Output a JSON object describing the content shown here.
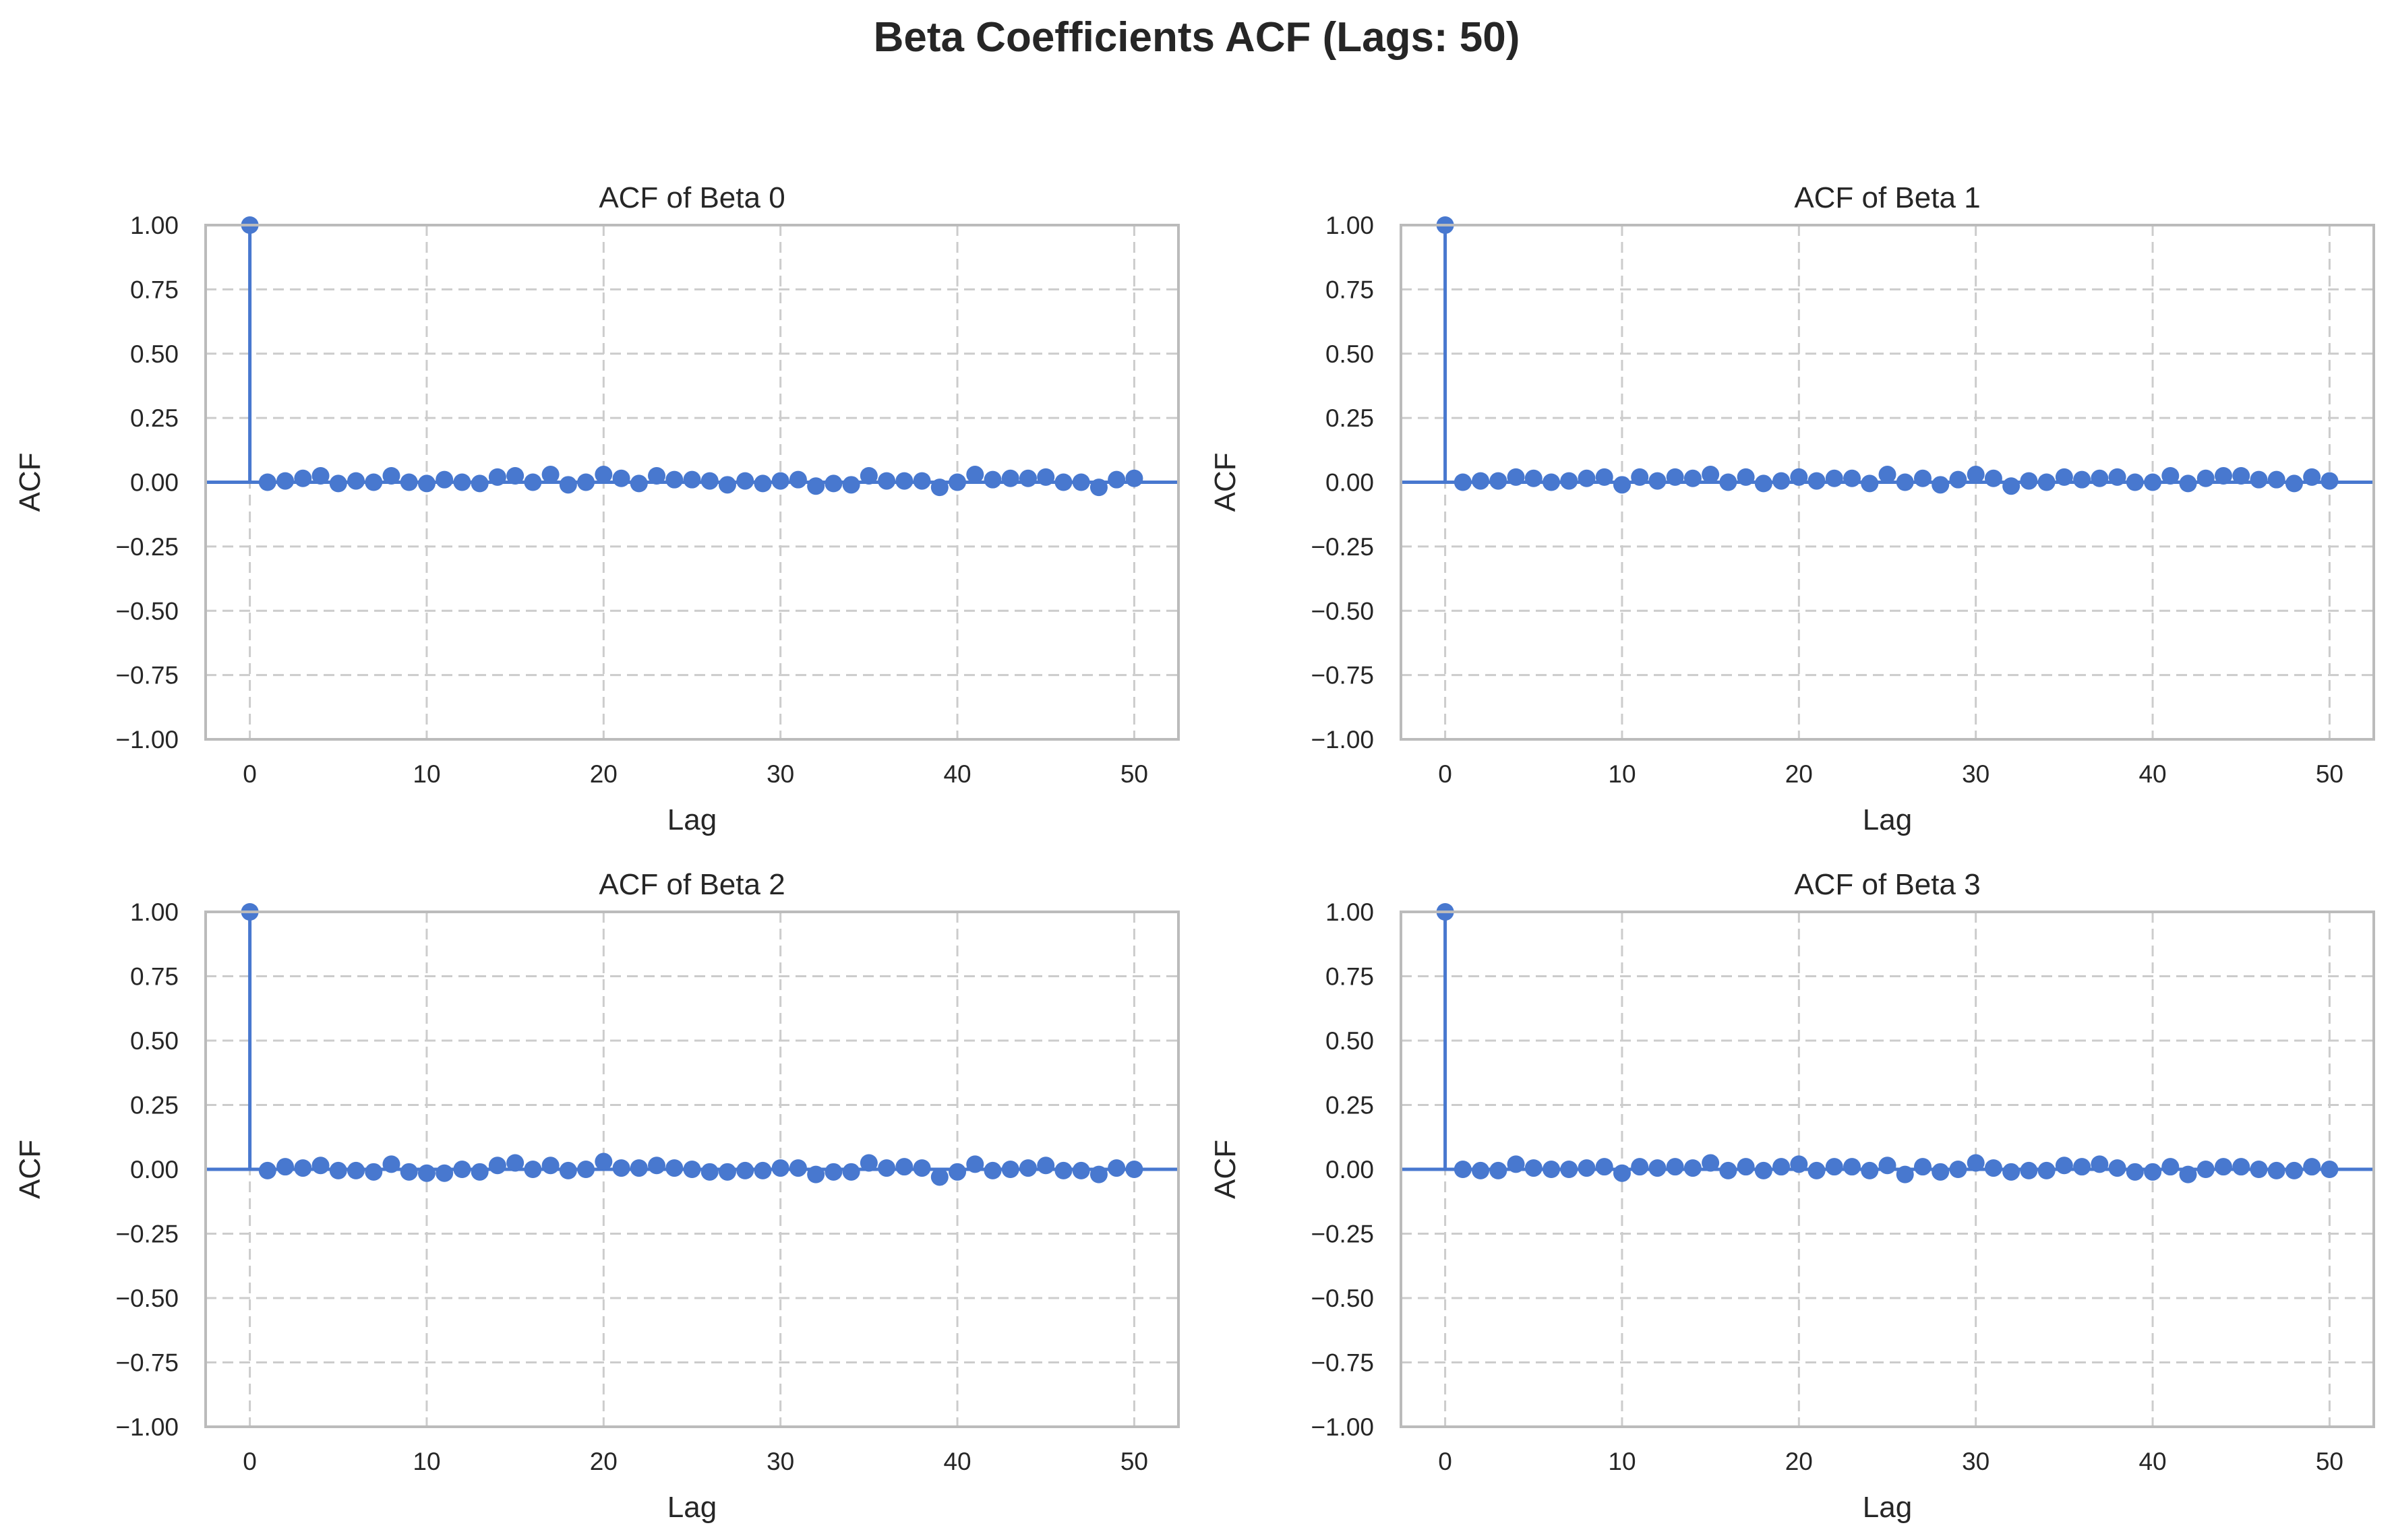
{
  "figure": {
    "title": "Beta Coefficients ACF (Lags: 50)"
  },
  "colors": {
    "series": "#4878cf",
    "grid": "#cccccc",
    "spine": "#bbbbbb",
    "text": "#262626"
  },
  "chart_data": [
    {
      "type": "stem",
      "title": "ACF of Beta 0",
      "xlabel": "Lag",
      "ylabel": "ACF",
      "xlim": [
        -2.5,
        52.5
      ],
      "ylim": [
        -1.0,
        1.0
      ],
      "xticks": [
        0,
        10,
        20,
        30,
        40,
        50
      ],
      "yticks": [
        -1.0,
        -0.75,
        -0.5,
        -0.25,
        0.0,
        0.25,
        0.5,
        0.75,
        1.0
      ],
      "ytick_labels": [
        "−1.00",
        "−0.75",
        "−0.50",
        "−0.25",
        "0.00",
        "0.25",
        "0.50",
        "0.75",
        "1.00"
      ],
      "grid": true,
      "x": [
        0,
        1,
        2,
        3,
        4,
        5,
        6,
        7,
        8,
        9,
        10,
        11,
        12,
        13,
        14,
        15,
        16,
        17,
        18,
        19,
        20,
        21,
        22,
        23,
        24,
        25,
        26,
        27,
        28,
        29,
        30,
        31,
        32,
        33,
        34,
        35,
        36,
        37,
        38,
        39,
        40,
        41,
        42,
        43,
        44,
        45,
        46,
        47,
        48,
        49,
        50
      ],
      "values": [
        1.0,
        0.0,
        0.005,
        0.015,
        0.025,
        -0.005,
        0.005,
        0.0,
        0.025,
        0.0,
        -0.005,
        0.01,
        0.0,
        -0.005,
        0.02,
        0.025,
        0.0,
        0.03,
        -0.01,
        0.0,
        0.03,
        0.015,
        -0.005,
        0.025,
        0.01,
        0.01,
        0.005,
        -0.01,
        0.005,
        -0.005,
        0.005,
        0.01,
        -0.015,
        -0.005,
        -0.01,
        0.025,
        0.005,
        0.005,
        0.005,
        -0.02,
        0.0,
        0.03,
        0.01,
        0.015,
        0.015,
        0.02,
        0.0,
        0.0,
        -0.02,
        0.01,
        0.015
      ]
    },
    {
      "type": "stem",
      "title": "ACF of Beta 1",
      "xlabel": "Lag",
      "ylabel": "ACF",
      "xlim": [
        -2.5,
        52.5
      ],
      "ylim": [
        -1.0,
        1.0
      ],
      "xticks": [
        0,
        10,
        20,
        30,
        40,
        50
      ],
      "yticks": [
        -1.0,
        -0.75,
        -0.5,
        -0.25,
        0.0,
        0.25,
        0.5,
        0.75,
        1.0
      ],
      "ytick_labels": [
        "−1.00",
        "−0.75",
        "−0.50",
        "−0.25",
        "0.00",
        "0.25",
        "0.50",
        "0.75",
        "1.00"
      ],
      "grid": true,
      "x": [
        0,
        1,
        2,
        3,
        4,
        5,
        6,
        7,
        8,
        9,
        10,
        11,
        12,
        13,
        14,
        15,
        16,
        17,
        18,
        19,
        20,
        21,
        22,
        23,
        24,
        25,
        26,
        27,
        28,
        29,
        30,
        31,
        32,
        33,
        34,
        35,
        36,
        37,
        38,
        39,
        40,
        41,
        42,
        43,
        44,
        45,
        46,
        47,
        48,
        49,
        50
      ],
      "values": [
        1.0,
        0.0,
        0.005,
        0.005,
        0.02,
        0.015,
        0.0,
        0.005,
        0.015,
        0.02,
        -0.01,
        0.02,
        0.005,
        0.02,
        0.015,
        0.03,
        0.0,
        0.02,
        -0.005,
        0.005,
        0.02,
        0.005,
        0.015,
        0.015,
        -0.005,
        0.03,
        0.0,
        0.015,
        -0.01,
        0.01,
        0.03,
        0.015,
        -0.015,
        0.005,
        0.0,
        0.02,
        0.01,
        0.015,
        0.02,
        0.0,
        0.0,
        0.025,
        -0.005,
        0.015,
        0.025,
        0.025,
        0.01,
        0.01,
        -0.005,
        0.02,
        0.005
      ]
    },
    {
      "type": "stem",
      "title": "ACF of Beta 2",
      "xlabel": "Lag",
      "ylabel": "ACF",
      "xlim": [
        -2.5,
        52.5
      ],
      "ylim": [
        -1.0,
        1.0
      ],
      "xticks": [
        0,
        10,
        20,
        30,
        40,
        50
      ],
      "yticks": [
        -1.0,
        -0.75,
        -0.5,
        -0.25,
        0.0,
        0.25,
        0.5,
        0.75,
        1.0
      ],
      "ytick_labels": [
        "−1.00",
        "−0.75",
        "−0.50",
        "−0.25",
        "0.00",
        "0.25",
        "0.50",
        "0.75",
        "1.00"
      ],
      "grid": true,
      "x": [
        0,
        1,
        2,
        3,
        4,
        5,
        6,
        7,
        8,
        9,
        10,
        11,
        12,
        13,
        14,
        15,
        16,
        17,
        18,
        19,
        20,
        21,
        22,
        23,
        24,
        25,
        26,
        27,
        28,
        29,
        30,
        31,
        32,
        33,
        34,
        35,
        36,
        37,
        38,
        39,
        40,
        41,
        42,
        43,
        44,
        45,
        46,
        47,
        48,
        49,
        50
      ],
      "values": [
        1.0,
        -0.005,
        0.01,
        0.005,
        0.015,
        -0.005,
        -0.005,
        -0.01,
        0.02,
        -0.01,
        -0.015,
        -0.015,
        0.0,
        -0.01,
        0.015,
        0.025,
        0.0,
        0.015,
        -0.005,
        0.0,
        0.03,
        0.005,
        0.005,
        0.015,
        0.005,
        0.0,
        -0.01,
        -0.01,
        -0.005,
        -0.005,
        0.005,
        0.005,
        -0.02,
        -0.01,
        -0.01,
        0.025,
        0.005,
        0.01,
        0.005,
        -0.03,
        -0.01,
        0.02,
        -0.005,
        0.0,
        0.005,
        0.015,
        -0.005,
        -0.005,
        -0.02,
        0.005,
        0.0
      ]
    },
    {
      "type": "stem",
      "title": "ACF of Beta 3",
      "xlabel": "Lag",
      "ylabel": "ACF",
      "xlim": [
        -2.5,
        52.5
      ],
      "ylim": [
        -1.0,
        1.0
      ],
      "xticks": [
        0,
        10,
        20,
        30,
        40,
        50
      ],
      "yticks": [
        -1.0,
        -0.75,
        -0.5,
        -0.25,
        0.0,
        0.25,
        0.5,
        0.75,
        1.0
      ],
      "ytick_labels": [
        "−1.00",
        "−0.75",
        "−0.50",
        "−0.25",
        "0.00",
        "0.25",
        "0.50",
        "0.75",
        "1.00"
      ],
      "grid": true,
      "x": [
        0,
        1,
        2,
        3,
        4,
        5,
        6,
        7,
        8,
        9,
        10,
        11,
        12,
        13,
        14,
        15,
        16,
        17,
        18,
        19,
        20,
        21,
        22,
        23,
        24,
        25,
        26,
        27,
        28,
        29,
        30,
        31,
        32,
        33,
        34,
        35,
        36,
        37,
        38,
        39,
        40,
        41,
        42,
        43,
        44,
        45,
        46,
        47,
        48,
        49,
        50
      ],
      "values": [
        1.0,
        0.0,
        -0.005,
        -0.005,
        0.02,
        0.005,
        0.0,
        0.0,
        0.005,
        0.01,
        -0.015,
        0.01,
        0.005,
        0.01,
        0.005,
        0.025,
        -0.005,
        0.01,
        -0.005,
        0.01,
        0.02,
        -0.005,
        0.01,
        0.01,
        -0.005,
        0.015,
        -0.02,
        0.01,
        -0.01,
        0.0,
        0.025,
        0.005,
        -0.01,
        -0.005,
        -0.005,
        0.015,
        0.01,
        0.02,
        0.005,
        -0.01,
        -0.01,
        0.01,
        -0.02,
        0.0,
        0.01,
        0.01,
        0.0,
        -0.005,
        -0.005,
        0.01,
        0.0
      ]
    }
  ]
}
